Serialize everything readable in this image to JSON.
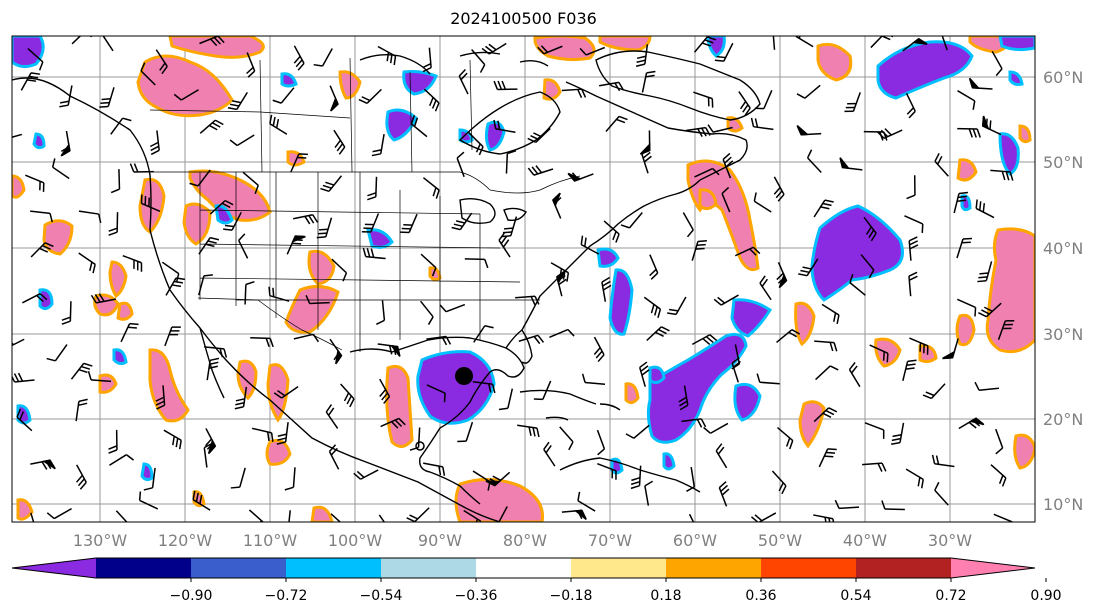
{
  "figure": {
    "title": "2024100500 F036",
    "longitude_labels": [
      "130°W",
      "120°W",
      "110°W",
      "100°W",
      "90°W",
      "80°W",
      "70°W",
      "60°W",
      "50°W",
      "40°W",
      "30°W"
    ],
    "latitude_labels": [
      "60°N",
      "50°N",
      "40°N",
      "30°N",
      "20°N",
      "10°N"
    ]
  },
  "colorbar": {
    "tick_labels": [
      "−0.90",
      "−0.72",
      "−0.54",
      "−0.36",
      "−0.18",
      "0.18",
      "0.36",
      "0.54",
      "0.72",
      "0.90"
    ],
    "colors": [
      "#8a2be2",
      "#00008b",
      "#3a5fcd",
      "#00bfff",
      "#add8e6",
      "#ffffff",
      "#ffe88c",
      "#ffa500",
      "#ff4500",
      "#b22222",
      "#ff7fb0"
    ],
    "extend": "both"
  },
  "colors": {
    "negative_fill": "#8a2be2",
    "positive_fill": "#f080b0",
    "positive_edge_orange": "#ffa500",
    "positive_edge_red": "#ff4500",
    "negative_edge_blue": "#00bfff",
    "gridline": "#808080",
    "coastline": "#000000"
  },
  "markers": {
    "storm_symbol": "large black dot near 26°N 87°W"
  }
}
